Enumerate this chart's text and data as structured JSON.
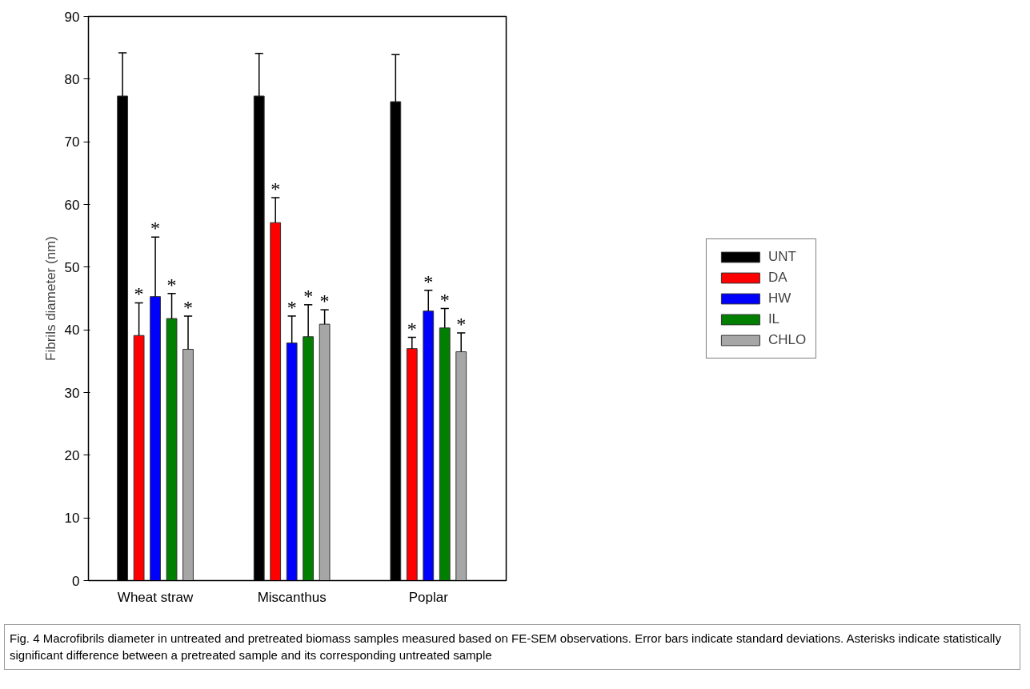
{
  "chart_data": {
    "type": "bar",
    "ylabel": "Fibrils diameter (nm)",
    "categories": [
      "Wheat straw",
      "Miscanthus",
      "Poplar"
    ],
    "ylim": [
      0,
      90
    ],
    "yticks": [
      0,
      10,
      20,
      30,
      40,
      50,
      60,
      70,
      80,
      90
    ],
    "grid": false,
    "legend": "right",
    "series": [
      {
        "name": "UNT",
        "color": "#000000",
        "values": [
          77.3,
          77.3,
          76.4
        ],
        "errors": [
          [
            77.3,
            84.2
          ],
          [
            77.3,
            84.1
          ],
          [
            76.4,
            83.9
          ]
        ]
      },
      {
        "name": "DA",
        "color": "#ff0000",
        "values": [
          39.1,
          57.1,
          37.0
        ],
        "errors": [
          [
            39.1,
            44.3
          ],
          [
            57.1,
            61.1
          ],
          [
            37.0,
            38.8
          ]
        ],
        "value_labels": [
          "*",
          "*",
          "*"
        ]
      },
      {
        "name": "HW",
        "color": "#0000ff",
        "values": [
          45.3,
          37.9,
          43.0
        ],
        "errors": [
          [
            45.3,
            54.8
          ],
          [
            37.9,
            42.2
          ],
          [
            43.0,
            46.3
          ]
        ],
        "value_labels": [
          "*",
          "*",
          "*"
        ]
      },
      {
        "name": "IL",
        "color": "#007f00",
        "values": [
          41.8,
          38.9,
          40.3
        ],
        "errors": [
          [
            41.8,
            45.8
          ],
          [
            38.9,
            44.0
          ],
          [
            40.3,
            43.4
          ]
        ],
        "value_labels": [
          "*",
          "*",
          "*"
        ]
      },
      {
        "name": "CHLO",
        "color": "#a6a6a6",
        "values": [
          36.9,
          40.9,
          36.5
        ],
        "errors": [
          [
            36.9,
            42.2
          ],
          [
            40.9,
            43.2
          ],
          [
            36.5,
            39.5
          ]
        ],
        "value_labels": [
          "*",
          "*",
          "*"
        ]
      }
    ],
    "annotations": [
      "Fig. 4  Macrofibrils diameter in untreated and pretreated biomass samples measured based on FE-SEM observations. Error bars indicate standard deviations. Asterisks indicate statistically significant difference between a pretreated sample and its corresponding untreated sample"
    ]
  }
}
